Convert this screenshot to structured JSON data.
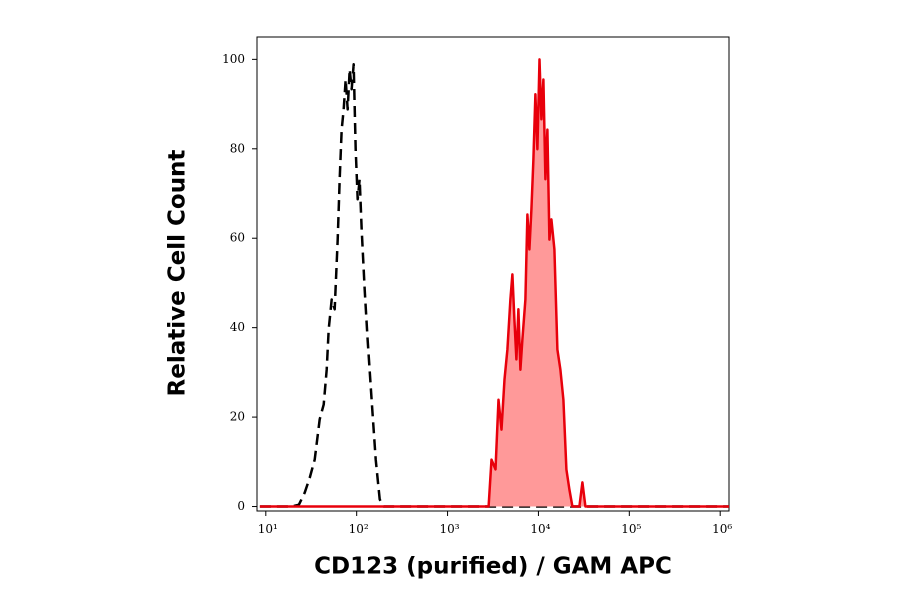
{
  "chart_data": {
    "type": "histogram-line",
    "x_label": "CD123 (purified) / GAM APC",
    "y_label": "Relative Cell Count",
    "x_scale": "log",
    "xlim": [
      8,
      1250000
    ],
    "xticks": [
      {
        "value": 10,
        "label": "10¹"
      },
      {
        "value": 100,
        "label": "10²"
      },
      {
        "value": 1000,
        "label": "10³"
      },
      {
        "value": 10000,
        "label": "10⁴"
      },
      {
        "value": 100000,
        "label": "10⁵"
      },
      {
        "value": 1000000,
        "label": "10⁶"
      }
    ],
    "ylim": [
      -1,
      105
    ],
    "yticks": [
      0,
      20,
      40,
      60,
      80,
      100
    ],
    "series": [
      {
        "color": "#000000",
        "dashed": true,
        "fill": null,
        "x": [
          8.6,
          19.3,
          23.1,
          26.8,
          30.5,
          34.5,
          39.2,
          43.4,
          46.8,
          49.2,
          53.1,
          57.3,
          61.8,
          65.0,
          68.4,
          72.0,
          75.7,
          79.7,
          83.8,
          88.2,
          92.7,
          97.5,
          102.6,
          108,
          113.5,
          122.5,
          132,
          146,
          162,
          179,
          198,
          243,
          1250000
        ],
        "values": [
          0,
          0,
          0.4,
          3.1,
          6.5,
          10.5,
          19.5,
          22.8,
          30.6,
          39.6,
          46.3,
          44.1,
          59.7,
          73.2,
          84.3,
          88.8,
          95.5,
          88.8,
          97.8,
          93.3,
          98.9,
          79.9,
          68.7,
          73.2,
          61.9,
          48.5,
          37.4,
          23.9,
          10.5,
          1.6,
          0,
          0,
          0
        ]
      },
      {
        "color": "#e8000b",
        "dashed": false,
        "fill": "#ff9999",
        "x": [
          8.6,
          2826,
          3048,
          3367,
          3631,
          3918,
          4227,
          4560,
          4920,
          5176,
          5445,
          5728,
          6026,
          6339,
          6669,
          7194,
          7568,
          7962,
          8376,
          8811,
          9268,
          9750,
          10260,
          10790,
          11350,
          11940,
          12560,
          13210,
          13900,
          15000,
          16180,
          17460,
          18840,
          20320,
          21930,
          23660,
          28250,
          30480,
          32830,
          1250000
        ],
        "values": [
          0,
          0,
          10.5,
          8.3,
          23.9,
          17.2,
          28.4,
          35.1,
          46.3,
          51.9,
          41.8,
          32.9,
          44.1,
          30.6,
          37.4,
          46.3,
          65.3,
          57.5,
          66.4,
          77.6,
          92.2,
          79.9,
          100,
          86.6,
          95.5,
          73.2,
          84.3,
          59.7,
          64.2,
          57.5,
          35.1,
          30.6,
          23.9,
          8.3,
          3.8,
          0,
          0,
          5.4,
          0,
          0
        ]
      }
    ]
  }
}
